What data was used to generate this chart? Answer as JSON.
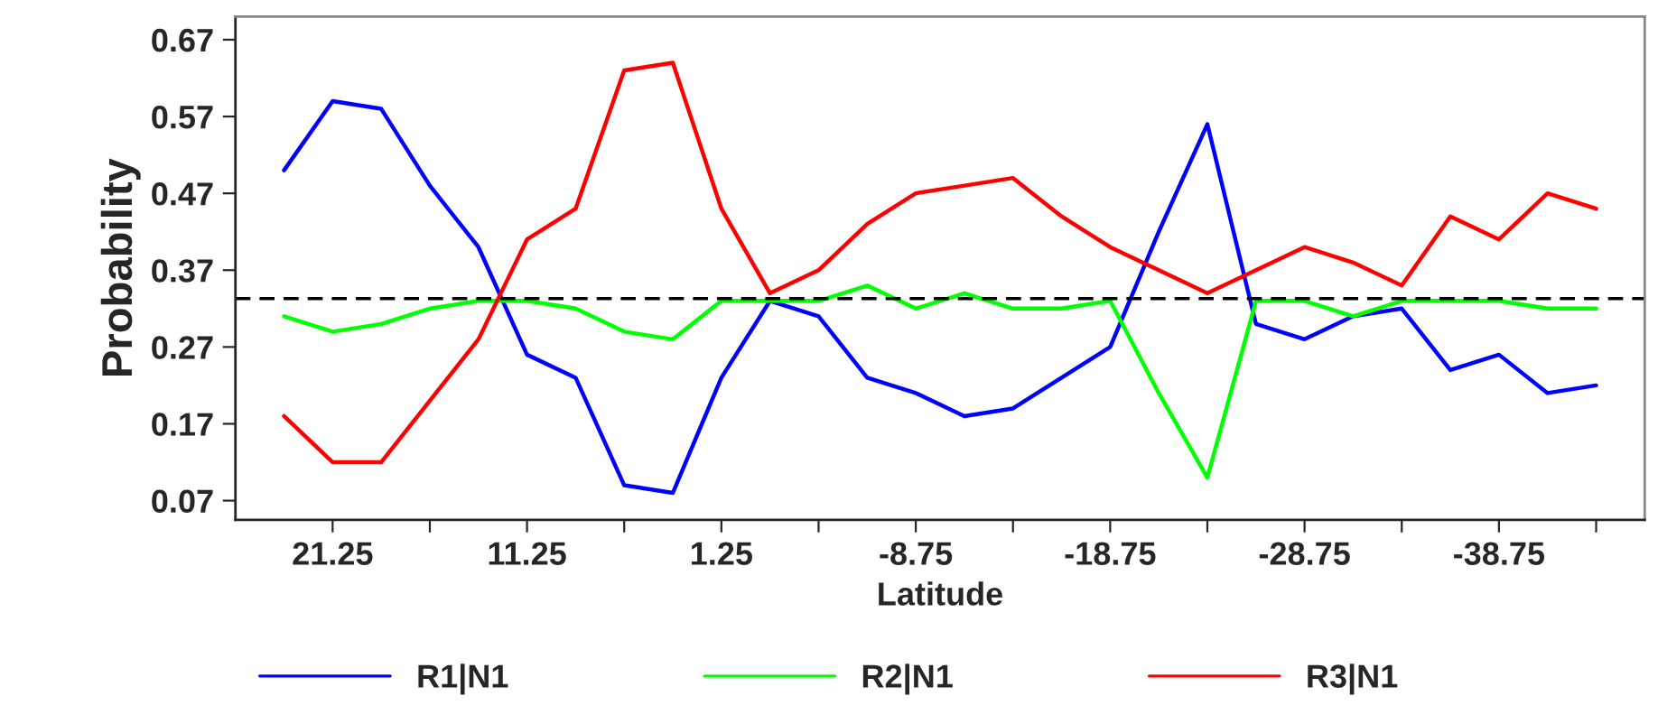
{
  "chart_data": {
    "type": "line",
    "xlabel": "Latitude",
    "ylabel": "Probability",
    "x": [
      23.75,
      21.25,
      18.75,
      16.25,
      13.75,
      11.25,
      8.75,
      6.25,
      3.75,
      1.25,
      -1.25,
      -3.75,
      -6.25,
      -8.75,
      -11.25,
      -13.75,
      -16.25,
      -18.75,
      -21.25,
      -23.75,
      -26.25,
      -28.75,
      -31.25,
      -33.75,
      -36.25,
      -38.75,
      -41.25,
      -43.75
    ],
    "series": [
      {
        "name": "R1|N1",
        "color": "#0000ff",
        "values": [
          0.5,
          0.59,
          0.58,
          0.48,
          0.4,
          0.26,
          0.23,
          0.09,
          0.08,
          0.23,
          0.33,
          0.31,
          0.23,
          0.21,
          0.18,
          0.19,
          0.23,
          0.27,
          0.42,
          0.56,
          0.3,
          0.28,
          0.31,
          0.32,
          0.24,
          0.26,
          0.21,
          0.22
        ]
      },
      {
        "name": "R2|N1",
        "color": "#00ff00",
        "values": [
          0.31,
          0.29,
          0.3,
          0.32,
          0.33,
          0.33,
          0.32,
          0.29,
          0.28,
          0.33,
          0.33,
          0.33,
          0.35,
          0.32,
          0.34,
          0.32,
          0.32,
          0.33,
          0.21,
          0.1,
          0.33,
          0.33,
          0.31,
          0.33,
          0.33,
          0.33,
          0.32,
          0.32
        ]
      },
      {
        "name": "R3|N1",
        "color": "#ff0000",
        "values": [
          0.18,
          0.12,
          0.12,
          0.2,
          0.28,
          0.41,
          0.45,
          0.63,
          0.64,
          0.45,
          0.34,
          0.37,
          0.43,
          0.47,
          0.48,
          0.49,
          0.44,
          0.4,
          0.37,
          0.34,
          0.37,
          0.4,
          0.38,
          0.35,
          0.44,
          0.41,
          0.47,
          0.45
        ]
      }
    ],
    "xlim": [
      26.25,
      -46.25
    ],
    "xticks": [
      {
        "value": 21.25,
        "label": "21.25"
      },
      {
        "value": 16.25,
        "label": null
      },
      {
        "value": 11.25,
        "label": "11.25"
      },
      {
        "value": 6.25,
        "label": null
      },
      {
        "value": 1.25,
        "label": "1.25"
      },
      {
        "value": -3.75,
        "label": null
      },
      {
        "value": -8.75,
        "label": "-8.75"
      },
      {
        "value": -13.75,
        "label": null
      },
      {
        "value": -18.75,
        "label": "-18.75"
      },
      {
        "value": -23.75,
        "label": null
      },
      {
        "value": -28.75,
        "label": "-28.75"
      },
      {
        "value": -33.75,
        "label": null
      },
      {
        "value": -38.75,
        "label": "-38.75"
      },
      {
        "value": -43.75,
        "label": null
      }
    ],
    "ylim": [
      0.045,
      0.7
    ],
    "yticks": [
      0.07,
      0.17,
      0.27,
      0.37,
      0.47,
      0.57,
      0.67
    ],
    "ref_lines": [
      {
        "axis": "y",
        "value": 0.333,
        "color": "#000000",
        "line_style": "dashed"
      }
    ],
    "grid": false,
    "legend": "bottom",
    "marker": "none",
    "line_style": "solid"
  }
}
